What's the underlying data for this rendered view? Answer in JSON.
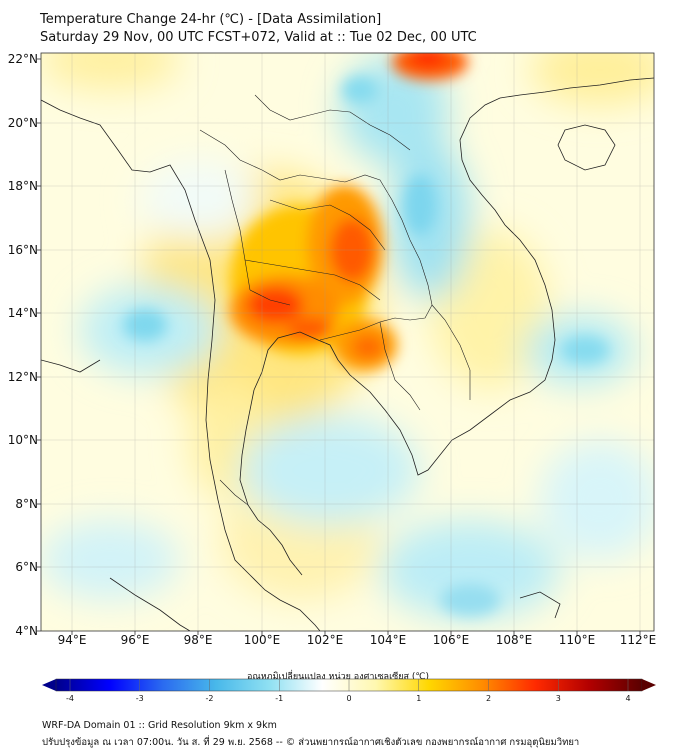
{
  "title_line1": "Temperature Change 24-hr (℃) - [Data Assimilation]",
  "title_line2": "Saturday 29 Nov, 00 UTC FCST+072, Valid at :: Tue 02 Dec, 00 UTC",
  "lat_labels": [
    "22°N",
    "20°N",
    "18°N",
    "16°N",
    "14°N",
    "12°N",
    "10°N",
    "8°N",
    "6°N",
    "4°N"
  ],
  "lon_labels": [
    "94°E",
    "96°E",
    "98°E",
    "100°E",
    "102°E",
    "104°E",
    "106°E",
    "108°E",
    "110°E",
    "112°E"
  ],
  "colorbar": {
    "title": "อุณหภูมิเปลี่ยนแปลง หน่วย องศาเซลเซียส (℃)",
    "min": -4,
    "max": 4,
    "tick_labels": [
      "-4",
      "-3",
      "-2",
      "-1",
      "0",
      "1",
      "2",
      "3",
      "4"
    ],
    "colors": [
      "#00008b",
      "#0000ff",
      "#2a6af0",
      "#48b8ea",
      "#8fe0f2",
      "#ffffff",
      "#fff8b0",
      "#ffd700",
      "#ff8c00",
      "#ff2a00",
      "#b30000",
      "#5a0000"
    ]
  },
  "footer_line1": "WRF-DA Domain 01 :: Grid Resolution 9km x 9km",
  "footer_line2": "ปรับปรุงข้อมูล ณ เวลา 07:00น. วัน ส. ที่ 29 พ.ย. 2568 -- © ส่วนพยากรณ์อากาศเชิงตัวเลข กองพยากรณ์อากาศ กรมอุตุนิยมวิทยา",
  "field_features": [
    {
      "name": "central-thailand-warm-core",
      "lon": 100.6,
      "lat": 13.9,
      "value": 3.0
    },
    {
      "name": "northeast-thailand-warm-core",
      "lon": 102.4,
      "lat": 15.9,
      "value": 2.8
    },
    {
      "name": "cambodia-warm-spot",
      "lon": 103.0,
      "lat": 12.9,
      "value": 2.3
    },
    {
      "name": "south-china-warm-spot",
      "lon": 105.4,
      "lat": 22.0,
      "value": 2.8
    },
    {
      "name": "laos-cool-zone",
      "lon": 104.8,
      "lat": 17.0,
      "value": -1.3
    },
    {
      "name": "andaman-cool-spot",
      "lon": 95.3,
      "lat": 13.7,
      "value": -1.0
    },
    {
      "name": "gulf-of-thailand-cool-zone",
      "lon": 101.5,
      "lat": 9.3,
      "value": -0.9
    },
    {
      "name": "south-china-sea-cool-spot",
      "lon": 110.5,
      "lat": 12.6,
      "value": -1.0
    },
    {
      "name": "southern-cool-zone",
      "lon": 104.5,
      "lat": 6.0,
      "value": -1.0
    }
  ]
}
